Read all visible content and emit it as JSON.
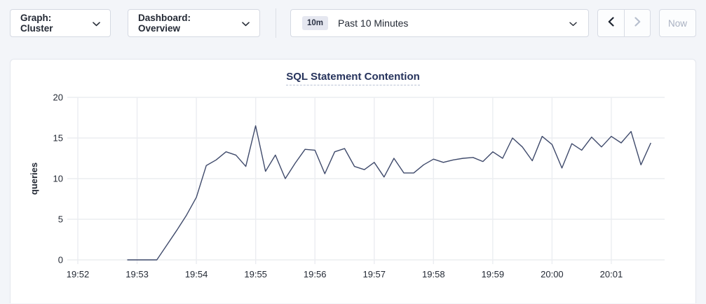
{
  "toolbar": {
    "graph_dropdown": {
      "label": "Graph: Cluster"
    },
    "dashboard_dropdown": {
      "label": "Dashboard: Overview"
    },
    "time_range": {
      "badge": "10m",
      "label": "Past 10 Minutes"
    },
    "now_button": {
      "label": "Now"
    }
  },
  "colors": {
    "page_bg": "#f3f5f9",
    "panel_bg": "#ffffff",
    "series_line": "#3f4a6b",
    "title_text": "#26335c",
    "gridline": "#ebedf1",
    "tick_text": "#242a35",
    "disabled_text": "#a9b1c2",
    "badge_bg": "#e5e7f0"
  },
  "chart_data": {
    "type": "line",
    "title": "SQL Statement Contention",
    "xlabel": "",
    "ylabel": "queries",
    "ylim": [
      0,
      20
    ],
    "yticks": [
      0,
      5,
      10,
      15,
      20
    ],
    "xticks": [
      "19:52",
      "19:53",
      "19:54",
      "19:55",
      "19:56",
      "19:57",
      "19:58",
      "19:59",
      "20:00",
      "20:01"
    ],
    "grid": true,
    "legend": "none",
    "interval_seconds": 10,
    "series": [
      {
        "name": "queries",
        "times": [
          "19:52:50",
          "19:53:00",
          "19:53:10",
          "19:53:20",
          "19:53:30",
          "19:53:40",
          "19:53:50",
          "19:54:00",
          "19:54:10",
          "19:54:20",
          "19:54:30",
          "19:54:40",
          "19:54:50",
          "19:55:00",
          "19:55:10",
          "19:55:20",
          "19:55:30",
          "19:55:40",
          "19:55:50",
          "19:56:00",
          "19:56:10",
          "19:56:20",
          "19:56:30",
          "19:56:40",
          "19:56:50",
          "19:57:00",
          "19:57:10",
          "19:57:20",
          "19:57:30",
          "19:57:40",
          "19:57:50",
          "19:58:00",
          "19:58:10",
          "19:58:20",
          "19:58:30",
          "19:58:40",
          "19:58:50",
          "19:59:00",
          "19:59:10",
          "19:59:20",
          "19:59:30",
          "19:59:40",
          "19:59:50",
          "20:00:00",
          "20:00:10",
          "20:00:20",
          "20:00:30",
          "20:00:40",
          "20:00:50",
          "20:01:00",
          "20:01:10",
          "20:01:20",
          "20:01:30",
          "20:01:40"
        ],
        "values": [
          0,
          0,
          0,
          0,
          1.8,
          3.6,
          5.5,
          7.7,
          11.6,
          12.3,
          13.3,
          12.9,
          11.5,
          16.5,
          10.9,
          12.9,
          10.0,
          11.9,
          13.6,
          13.5,
          10.6,
          13.3,
          13.7,
          11.5,
          11.1,
          12.0,
          10.2,
          12.5,
          10.7,
          10.7,
          11.7,
          12.4,
          12.0,
          12.3,
          12.5,
          12.6,
          12.1,
          13.3,
          12.5,
          15.0,
          13.9,
          12.2,
          15.2,
          14.2,
          11.3,
          14.3,
          13.5,
          15.1,
          13.9,
          15.2,
          14.4,
          15.8,
          11.7,
          14.4
        ]
      }
    ]
  }
}
